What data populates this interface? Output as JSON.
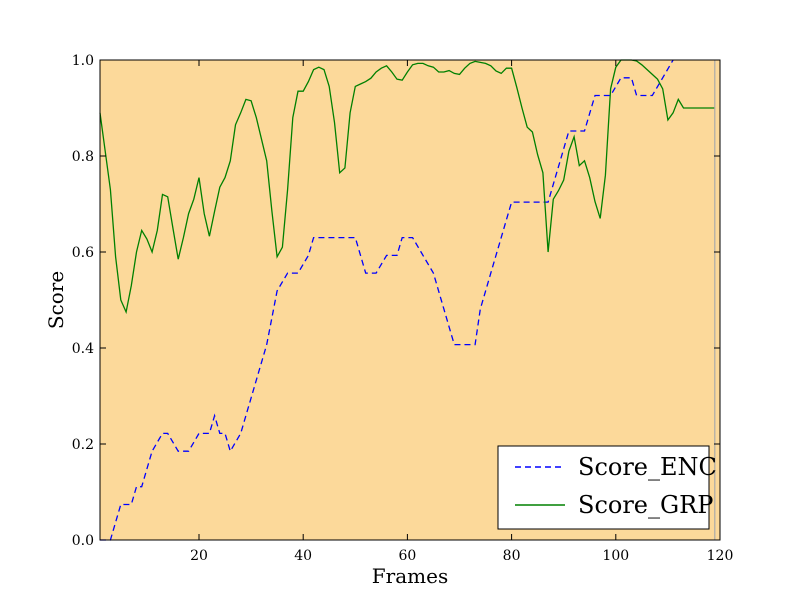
{
  "chart_data": {
    "type": "line",
    "xlabel": "Frames",
    "ylabel": "Score",
    "xlim": [
      1,
      120
    ],
    "ylim": [
      0.0,
      1.0
    ],
    "x_ticks": [
      20,
      40,
      60,
      80,
      100,
      120
    ],
    "y_ticks": [
      0.0,
      0.2,
      0.4,
      0.6,
      0.8,
      1.0
    ],
    "x_tick_labels": [
      "20",
      "40",
      "60",
      "80",
      "100",
      "120"
    ],
    "y_tick_labels": [
      "0.0",
      "0.2",
      "0.4",
      "0.6",
      "0.8",
      "1.0"
    ],
    "grid": false,
    "legend_position": "lower-right",
    "background_color": "#fcd99a",
    "series": [
      {
        "name": "Score_ENC",
        "color": "#0000ff",
        "style": "dashed",
        "points": [
          [
            1,
            0.0
          ],
          [
            3,
            0.0
          ],
          [
            5,
            0.074
          ],
          [
            7,
            0.074
          ],
          [
            8,
            0.111
          ],
          [
            9,
            0.111
          ],
          [
            11,
            0.185
          ],
          [
            13,
            0.222
          ],
          [
            14,
            0.222
          ],
          [
            16,
            0.185
          ],
          [
            18,
            0.185
          ],
          [
            20,
            0.222
          ],
          [
            22,
            0.222
          ],
          [
            23,
            0.259
          ],
          [
            24,
            0.222
          ],
          [
            25,
            0.222
          ],
          [
            26,
            0.185
          ],
          [
            28,
            0.222
          ],
          [
            30,
            0.296
          ],
          [
            32,
            0.37
          ],
          [
            33,
            0.407
          ],
          [
            35,
            0.519
          ],
          [
            37,
            0.556
          ],
          [
            39,
            0.556
          ],
          [
            41,
            0.593
          ],
          [
            42,
            0.63
          ],
          [
            48,
            0.63
          ],
          [
            50,
            0.63
          ],
          [
            52,
            0.556
          ],
          [
            54,
            0.556
          ],
          [
            56,
            0.593
          ],
          [
            58,
            0.593
          ],
          [
            59,
            0.63
          ],
          [
            61,
            0.63
          ],
          [
            63,
            0.593
          ],
          [
            65,
            0.556
          ],
          [
            67,
            0.481
          ],
          [
            68,
            0.444
          ],
          [
            69,
            0.407
          ],
          [
            71,
            0.407
          ],
          [
            73,
            0.407
          ],
          [
            74,
            0.481
          ],
          [
            76,
            0.556
          ],
          [
            78,
            0.63
          ],
          [
            80,
            0.704
          ],
          [
            84,
            0.704
          ],
          [
            87,
            0.704
          ],
          [
            88,
            0.741
          ],
          [
            89,
            0.778
          ],
          [
            91,
            0.852
          ],
          [
            94,
            0.852
          ],
          [
            95,
            0.889
          ],
          [
            96,
            0.926
          ],
          [
            99,
            0.926
          ],
          [
            101,
            0.963
          ],
          [
            103,
            0.963
          ],
          [
            104,
            0.926
          ],
          [
            107,
            0.926
          ],
          [
            109,
            0.963
          ],
          [
            111,
            1.0
          ]
        ]
      },
      {
        "name": "Score_GRP",
        "color": "#008000",
        "style": "solid",
        "points": [
          [
            1,
            0.89
          ],
          [
            2,
            0.81
          ],
          [
            3,
            0.73
          ],
          [
            4,
            0.59
          ],
          [
            5,
            0.5
          ],
          [
            6,
            0.475
          ],
          [
            7,
            0.53
          ],
          [
            8,
            0.6
          ],
          [
            9,
            0.645
          ],
          [
            10,
            0.627
          ],
          [
            11,
            0.6
          ],
          [
            12,
            0.645
          ],
          [
            13,
            0.72
          ],
          [
            14,
            0.715
          ],
          [
            15,
            0.65
          ],
          [
            16,
            0.585
          ],
          [
            17,
            0.63
          ],
          [
            18,
            0.68
          ],
          [
            19,
            0.71
          ],
          [
            20,
            0.755
          ],
          [
            21,
            0.68
          ],
          [
            22,
            0.633
          ],
          [
            23,
            0.685
          ],
          [
            24,
            0.735
          ],
          [
            25,
            0.755
          ],
          [
            26,
            0.79
          ],
          [
            27,
            0.865
          ],
          [
            28,
            0.89
          ],
          [
            29,
            0.918
          ],
          [
            30,
            0.915
          ],
          [
            31,
            0.88
          ],
          [
            32,
            0.835
          ],
          [
            33,
            0.79
          ],
          [
            34,
            0.685
          ],
          [
            35,
            0.59
          ],
          [
            36,
            0.61
          ],
          [
            37,
            0.73
          ],
          [
            38,
            0.88
          ],
          [
            39,
            0.935
          ],
          [
            40,
            0.935
          ],
          [
            41,
            0.955
          ],
          [
            42,
            0.98
          ],
          [
            43,
            0.985
          ],
          [
            44,
            0.98
          ],
          [
            45,
            0.945
          ],
          [
            46,
            0.87
          ],
          [
            47,
            0.765
          ],
          [
            48,
            0.775
          ],
          [
            49,
            0.89
          ],
          [
            50,
            0.945
          ],
          [
            51,
            0.95
          ],
          [
            52,
            0.955
          ],
          [
            53,
            0.962
          ],
          [
            54,
            0.975
          ],
          [
            55,
            0.983
          ],
          [
            56,
            0.988
          ],
          [
            57,
            0.975
          ],
          [
            58,
            0.96
          ],
          [
            59,
            0.958
          ],
          [
            60,
            0.975
          ],
          [
            61,
            0.99
          ],
          [
            62,
            0.993
          ],
          [
            63,
            0.993
          ],
          [
            64,
            0.988
          ],
          [
            65,
            0.985
          ],
          [
            66,
            0.975
          ],
          [
            67,
            0.975
          ],
          [
            68,
            0.978
          ],
          [
            69,
            0.972
          ],
          [
            70,
            0.97
          ],
          [
            71,
            0.983
          ],
          [
            72,
            0.993
          ],
          [
            73,
            0.997
          ],
          [
            74,
            0.995
          ],
          [
            75,
            0.993
          ],
          [
            76,
            0.988
          ],
          [
            77,
            0.977
          ],
          [
            78,
            0.972
          ],
          [
            79,
            0.983
          ],
          [
            80,
            0.983
          ],
          [
            81,
            0.943
          ],
          [
            82,
            0.9
          ],
          [
            83,
            0.86
          ],
          [
            84,
            0.85
          ],
          [
            85,
            0.803
          ],
          [
            86,
            0.765
          ],
          [
            87,
            0.6
          ],
          [
            88,
            0.71
          ],
          [
            89,
            0.728
          ],
          [
            90,
            0.75
          ],
          [
            91,
            0.81
          ],
          [
            92,
            0.84
          ],
          [
            93,
            0.78
          ],
          [
            94,
            0.79
          ],
          [
            95,
            0.755
          ],
          [
            96,
            0.705
          ],
          [
            97,
            0.67
          ],
          [
            98,
            0.76
          ],
          [
            99,
            0.94
          ],
          [
            100,
            0.985
          ],
          [
            101,
            1.0
          ],
          [
            102,
            1.0
          ],
          [
            103,
            1.0
          ],
          [
            104,
            0.998
          ],
          [
            105,
            0.99
          ],
          [
            106,
            0.98
          ],
          [
            107,
            0.97
          ],
          [
            108,
            0.96
          ],
          [
            109,
            0.94
          ],
          [
            110,
            0.875
          ],
          [
            111,
            0.89
          ],
          [
            112,
            0.918
          ],
          [
            113,
            0.9
          ],
          [
            119,
            0.9
          ]
        ]
      }
    ]
  }
}
